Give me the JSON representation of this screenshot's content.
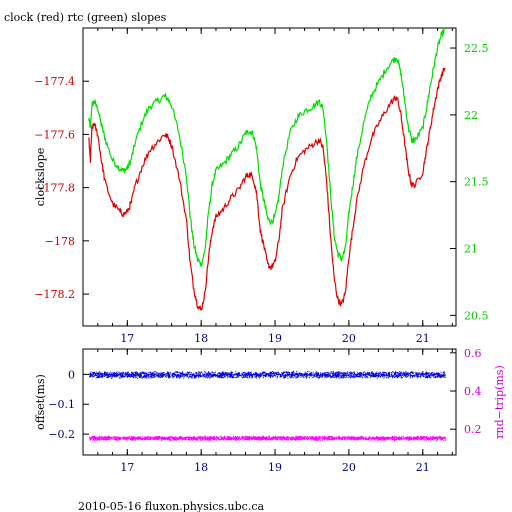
{
  "title": "clock (red) rtc (green) slopes",
  "footer": "2010-05-16 fluxon.physics.ubc.ca",
  "colors": {
    "axis": "#000000",
    "left_tick_labels": "#cc0000",
    "right_tick_labels": "#00cc00",
    "x_tick_labels_top": "#000080",
    "x_tick_labels_bottom": "#000080",
    "bottom_left_ticks": "#000080",
    "bottom_right_ticks": "#cc00cc",
    "bottom_right_label": "#cc00cc",
    "clock": "#dd0000",
    "rtc": "#00dd00",
    "offset": "#0000dd",
    "rndtrip": "#ff00ff"
  },
  "chart_data": [
    {
      "type": "line",
      "ylabel": "clockslope",
      "ylabel_right": "",
      "xlim": [
        16.4,
        21.45
      ],
      "ylim": [
        -178.32,
        -177.2
      ],
      "ylim_right": [
        20.42,
        22.65
      ],
      "x_ticks": [
        17,
        18,
        19,
        20,
        21
      ],
      "x_tick_labels": [
        "17",
        "18",
        "19",
        "20",
        "21"
      ],
      "y_ticks": [
        -177.4,
        -177.6,
        -177.8,
        -178,
        -178.2
      ],
      "y_tick_labels": [
        "−177.4",
        "−177.6",
        "−177.8",
        "−178",
        "−178.2"
      ],
      "y_ticks_right": [
        22.5,
        22,
        21.5,
        21,
        20.5
      ],
      "y_tick_labels_right": [
        "22.5",
        "22",
        "21.5",
        "21",
        "20.5"
      ],
      "series": [
        {
          "name": "clock",
          "axis": "left",
          "x": [
            16.48,
            16.5,
            16.52,
            16.55,
            16.6,
            16.65,
            16.7,
            16.8,
            16.9,
            16.95,
            17.0,
            17.05,
            17.1,
            17.2,
            17.3,
            17.4,
            17.5,
            17.55,
            17.6,
            17.7,
            17.8,
            17.85,
            17.9,
            17.95,
            18.0,
            18.05,
            18.1,
            18.15,
            18.2,
            18.3,
            18.4,
            18.5,
            18.6,
            18.65,
            18.7,
            18.75,
            18.8,
            18.85,
            18.9,
            18.95,
            19.0,
            19.05,
            19.1,
            19.2,
            19.3,
            19.4,
            19.5,
            19.6,
            19.65,
            19.7,
            19.75,
            19.8,
            19.85,
            19.9,
            19.95,
            20.0,
            20.05,
            20.1,
            20.2,
            20.3,
            20.4,
            20.5,
            20.6,
            20.65,
            20.7,
            20.75,
            20.8,
            20.85,
            20.9,
            21.0,
            21.05,
            21.1,
            21.15,
            21.2,
            21.25,
            21.3
          ],
          "y": [
            -177.62,
            -177.7,
            -177.58,
            -177.56,
            -177.6,
            -177.7,
            -177.78,
            -177.86,
            -177.89,
            -177.9,
            -177.89,
            -177.86,
            -177.8,
            -177.72,
            -177.66,
            -177.63,
            -177.6,
            -177.61,
            -177.64,
            -177.76,
            -177.92,
            -178.08,
            -178.18,
            -178.24,
            -178.26,
            -178.2,
            -178.06,
            -177.96,
            -177.91,
            -177.88,
            -177.84,
            -177.81,
            -177.76,
            -177.75,
            -177.76,
            -177.82,
            -177.96,
            -178.02,
            -178.09,
            -178.1,
            -178.08,
            -178.0,
            -177.88,
            -177.76,
            -177.69,
            -177.66,
            -177.64,
            -177.62,
            -177.65,
            -177.78,
            -177.98,
            -178.14,
            -178.22,
            -178.24,
            -178.2,
            -178.06,
            -177.96,
            -177.86,
            -177.72,
            -177.62,
            -177.56,
            -177.51,
            -177.47,
            -177.46,
            -177.52,
            -177.62,
            -177.73,
            -177.79,
            -177.79,
            -177.74,
            -177.66,
            -177.58,
            -177.5,
            -177.43,
            -177.38,
            -177.35
          ],
          "color": "#dd0000"
        },
        {
          "name": "rtc",
          "axis": "right",
          "x": [
            16.48,
            16.5,
            16.52,
            16.55,
            16.6,
            16.65,
            16.7,
            16.8,
            16.9,
            16.95,
            17.0,
            17.05,
            17.1,
            17.2,
            17.3,
            17.4,
            17.5,
            17.55,
            17.6,
            17.7,
            17.8,
            17.85,
            17.9,
            17.95,
            18.0,
            18.05,
            18.1,
            18.15,
            18.2,
            18.3,
            18.4,
            18.5,
            18.6,
            18.65,
            18.7,
            18.75,
            18.8,
            18.85,
            18.9,
            18.95,
            19.0,
            19.05,
            19.1,
            19.2,
            19.3,
            19.4,
            19.5,
            19.6,
            19.65,
            19.7,
            19.75,
            19.8,
            19.85,
            19.9,
            19.95,
            20.0,
            20.05,
            20.1,
            20.2,
            20.3,
            20.4,
            20.5,
            20.6,
            20.65,
            20.7,
            20.75,
            20.8,
            20.85,
            20.9,
            21.0,
            21.05,
            21.1,
            21.15,
            21.2,
            21.25,
            21.3
          ],
          "y": [
            21.97,
            21.9,
            22.07,
            22.1,
            22.05,
            21.92,
            21.82,
            21.66,
            21.6,
            21.58,
            21.6,
            21.66,
            21.78,
            21.95,
            22.06,
            22.1,
            22.14,
            22.12,
            22.07,
            21.86,
            21.55,
            21.25,
            21.03,
            20.92,
            20.88,
            20.98,
            21.27,
            21.48,
            21.58,
            21.63,
            21.7,
            21.76,
            21.86,
            21.88,
            21.86,
            21.75,
            21.48,
            21.36,
            21.22,
            21.2,
            21.24,
            21.38,
            21.61,
            21.86,
            21.98,
            22.03,
            22.06,
            22.1,
            22.05,
            21.8,
            21.42,
            21.1,
            20.96,
            20.92,
            20.99,
            21.26,
            21.46,
            21.66,
            21.94,
            22.14,
            22.24,
            22.34,
            22.41,
            22.43,
            22.32,
            22.13,
            21.92,
            21.81,
            21.81,
            21.9,
            22.05,
            22.21,
            22.36,
            22.5,
            22.59,
            22.64
          ],
          "color": "#00dd00"
        }
      ]
    },
    {
      "type": "scatter",
      "ylabel": "offset(ms)",
      "ylabel_right": "rnd−trip(ms)",
      "xlim": [
        16.4,
        21.45
      ],
      "ylim": [
        -0.27,
        0.085
      ],
      "ylim_right": [
        0.065,
        0.62
      ],
      "x_ticks": [
        17,
        18,
        19,
        20,
        21
      ],
      "x_tick_labels": [
        "17",
        "18",
        "19",
        "20",
        "21"
      ],
      "y_ticks": [
        0,
        -0.1,
        -0.2
      ],
      "y_tick_labels": [
        "0",
        "−0.1",
        "−0.2"
      ],
      "y_ticks_right": [
        0.6,
        0.4,
        0.2
      ],
      "y_tick_labels_right": [
        "0.6",
        "0.4",
        "0.2"
      ],
      "series": [
        {
          "name": "offset",
          "axis": "left",
          "x_range": [
            16.48,
            21.3
          ],
          "center": 0.0,
          "spread": 0.012,
          "color": "#0000dd"
        },
        {
          "name": "rnd-trip",
          "axis": "right",
          "x_range": [
            16.48,
            21.3
          ],
          "center": 0.155,
          "spread": 0.012,
          "color": "#ff00ff"
        }
      ]
    }
  ]
}
